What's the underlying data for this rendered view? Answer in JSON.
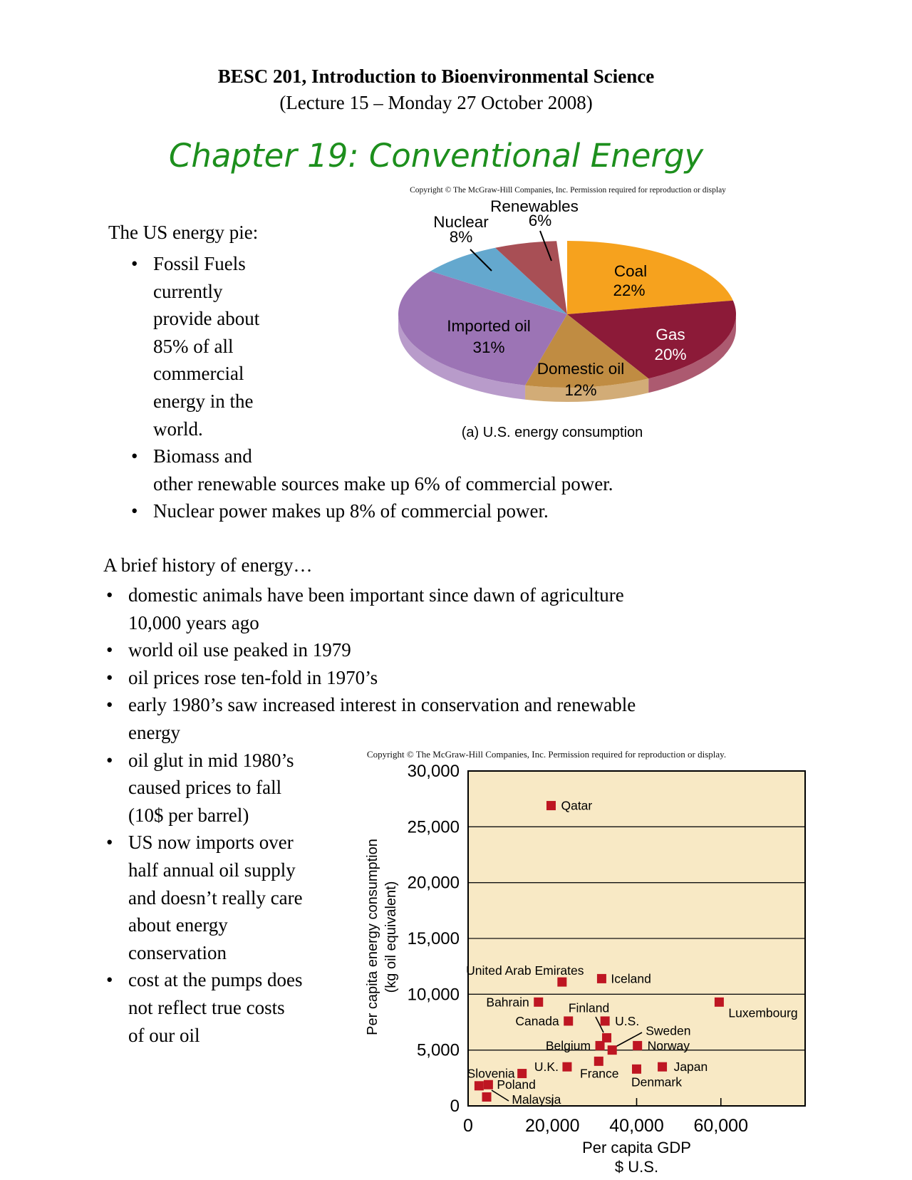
{
  "header": {
    "course_title": "BESC 201, Introduction to Bioenvironmental Science",
    "lecture_info": "(Lecture 15 – Monday 27 October 2008)",
    "chapter_heading": "Chapter 19: Conventional Energy"
  },
  "colors": {
    "chapter_green": "#1d8f1d",
    "marker_red": "#be1622",
    "plot_bg": "#f8e9c5"
  },
  "pie_section": {
    "heading": "The US energy pie:",
    "bullet1_lines": [
      "Fossil Fuels",
      "currently",
      "provide about",
      "85% of all",
      "commercial",
      "energy in the",
      "world."
    ],
    "bullet2_lines": [
      "Biomass and",
      "other renewable sources make up 6% of commercial power."
    ],
    "bullet3_lines": [
      "Nuclear power makes up 8% of commercial power."
    ]
  },
  "history_section": {
    "heading": "A brief history of energy…",
    "bullets": [
      {
        "lines": [
          "domestic animals have been important since dawn of agriculture",
          "10,000 years ago"
        ]
      },
      {
        "lines": [
          "world oil use peaked in 1979"
        ]
      },
      {
        "lines": [
          "oil prices rose ten-fold in 1970’s"
        ]
      },
      {
        "lines": [
          "early 1980’s saw increased interest in conservation and renewable",
          "energy"
        ]
      },
      {
        "lines": [
          "oil glut in mid 1980’s",
          "caused prices to fall",
          "(10$ per barrel)"
        ]
      },
      {
        "lines": [
          "US now imports over",
          "half annual oil supply",
          "and doesn’t really care",
          "about energy",
          "conservation"
        ]
      },
      {
        "lines": [
          "cost at the pumps does",
          "not reflect true costs",
          "of our oil"
        ]
      }
    ]
  },
  "pie_figure": {
    "copyright": "Copyright © The McGraw-Hill Companies, Inc. Permission required for reproduction or display",
    "caption": "(a) U.S. energy consumption"
  },
  "scatter_figure": {
    "copyright": "Copyright © The McGraw-Hill Companies, Inc. Permission required for reproduction or display."
  },
  "chart_data": [
    {
      "type": "pie",
      "title": "(a) U.S. energy consumption",
      "start_at_12_oclock": true,
      "clockwise": true,
      "slices": [
        {
          "label": "Coal",
          "pct": 22,
          "color": "#f6a21e",
          "label_color": "#000000"
        },
        {
          "label": "Gas",
          "pct": 20,
          "color": "#8c1a38",
          "label_color": "#ffffff"
        },
        {
          "label": "Domestic oil",
          "pct": 12,
          "color": "#c08c42",
          "label_color": "#000000"
        },
        {
          "label": "Imported oil",
          "pct": 31,
          "color": "#9c74b5",
          "label_color": "#000000"
        },
        {
          "label": "Nuclear",
          "pct": 8,
          "color": "#64a8ce",
          "label_color": "#000000"
        },
        {
          "label": "Renewables",
          "pct": 6,
          "color": "#a84f55",
          "label_color": "#000000"
        }
      ]
    },
    {
      "type": "scatter",
      "xlabel": "Per capita GDP",
      "xlabel_unit": "$ U.S.",
      "ylabel": "Per capita energy consumption",
      "ylabel_unit": "(kg oil equivalent)",
      "xlim": [
        0,
        80000
      ],
      "ylim": [
        0,
        30000
      ],
      "xticks": [
        "0",
        "20,000",
        "40,000",
        "60,000"
      ],
      "yticks": [
        "0",
        "5,000",
        "10,000",
        "15,000",
        "20,000",
        "25,000",
        "30,000"
      ],
      "grid": true,
      "points": [
        {
          "name": "Qatar",
          "gdp": 19700,
          "energy": 26900
        },
        {
          "name": "United Arab Emirates",
          "gdp": 22300,
          "energy": 11100
        },
        {
          "name": "Iceland",
          "gdp": 31700,
          "energy": 11400
        },
        {
          "name": "Bahrain",
          "gdp": 16700,
          "energy": 9300
        },
        {
          "name": "Luxembourg",
          "gdp": 59600,
          "energy": 9300
        },
        {
          "name": "Canada",
          "gdp": 23800,
          "energy": 7600
        },
        {
          "name": "U.S.",
          "gdp": 32500,
          "energy": 7600
        },
        {
          "name": "Finland",
          "gdp": 32900,
          "energy": 6100
        },
        {
          "name": "Belgium",
          "gdp": 31300,
          "energy": 5400
        },
        {
          "name": "Sweden",
          "gdp": 34200,
          "energy": 5000
        },
        {
          "name": "Norway",
          "gdp": 40200,
          "energy": 5400
        },
        {
          "name": "France",
          "gdp": 31000,
          "energy": 4000
        },
        {
          "name": "U.K.",
          "gdp": 23500,
          "energy": 3500
        },
        {
          "name": "Denmark",
          "gdp": 40000,
          "energy": 3300
        },
        {
          "name": "Japan",
          "gdp": 46100,
          "energy": 3500
        },
        {
          "name": "Slovenia",
          "gdp": 12800,
          "energy": 2900
        },
        {
          "name": "Poland",
          "gdp": 4800,
          "energy": 1900
        },
        {
          "name": "Malaysia",
          "gdp": 2600,
          "energy": 1800
        },
        {
          "name": "",
          "gdp": 4400,
          "energy": 800
        }
      ]
    }
  ]
}
